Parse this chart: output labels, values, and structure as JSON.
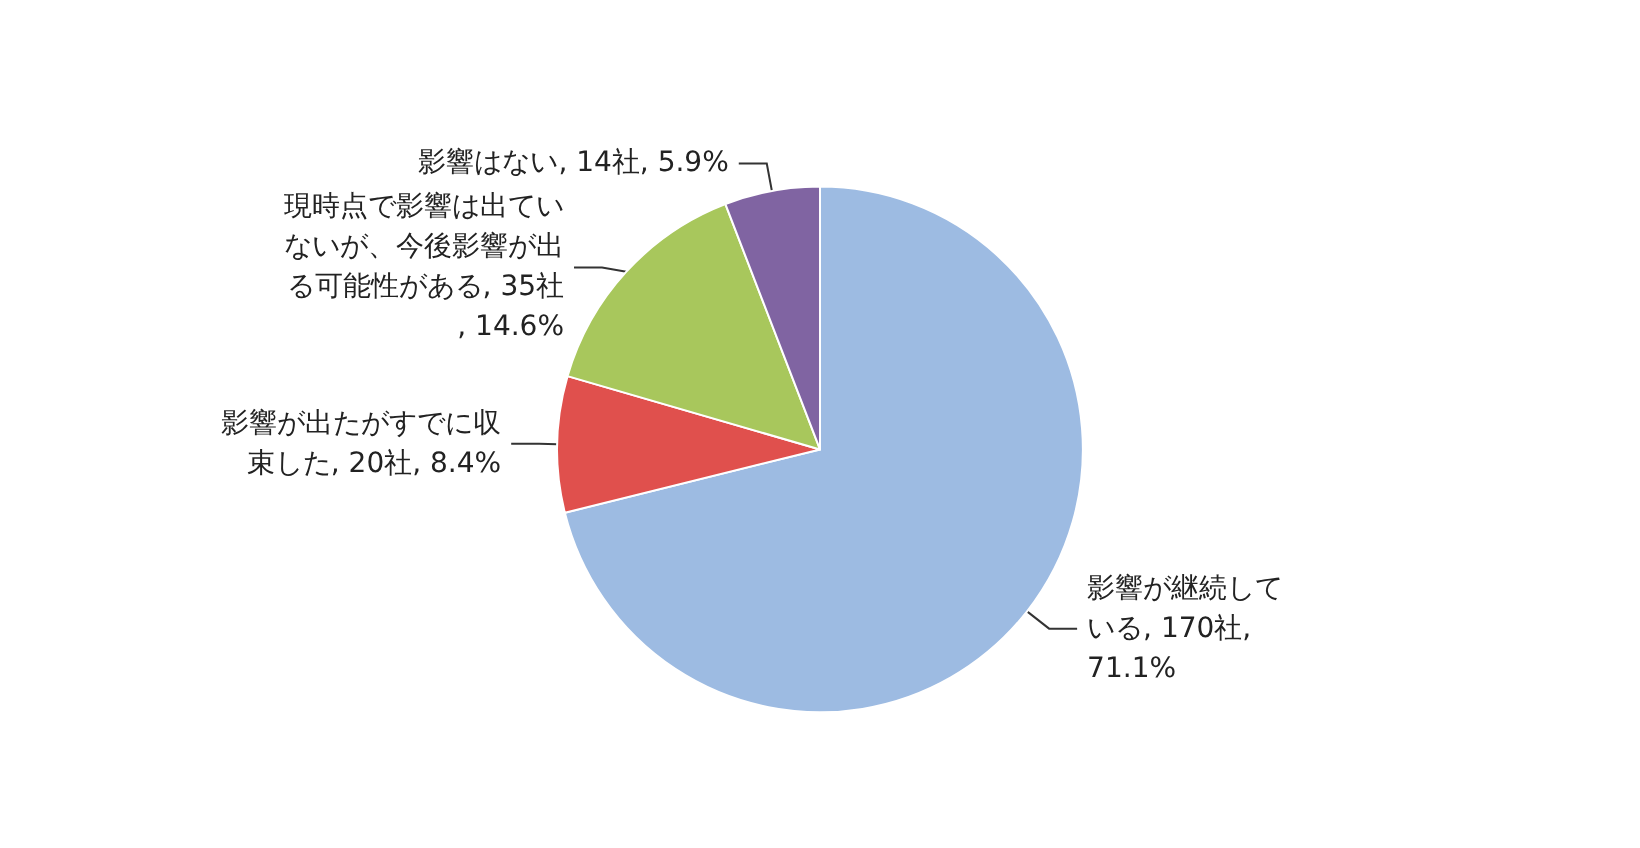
{
  "chart_data": {
    "type": "pie",
    "categories": [
      "影響が継続している",
      "影響が出たがすでに収束した",
      "現時点で影響は出ていないが、今後影響が出る可能性がある",
      "影響はない"
    ],
    "values": [
      170,
      20,
      35,
      14
    ],
    "value_labels": [
      "170社, 71.1%",
      "20社, 8.4%",
      "35社, 14.6%",
      "14社, 5.9%"
    ],
    "colors": [
      "#9dbbe2",
      "#e0504d",
      "#a8c75c",
      "#8064a2"
    ]
  }
}
